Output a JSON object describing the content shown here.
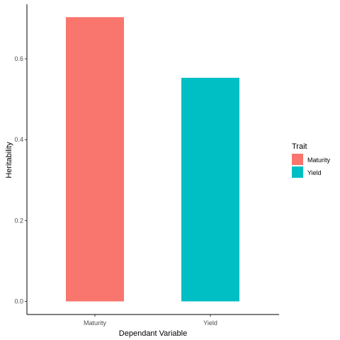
{
  "chart_data": {
    "type": "bar",
    "categories": [
      "Maturity",
      "Yield"
    ],
    "values": [
      0.703,
      0.553
    ],
    "colors": [
      "#F8766D",
      "#00BFC4"
    ],
    "xlabel": "Dependant Variable",
    "ylabel": "Heritability",
    "ylim": [
      0,
      0.74
    ],
    "yticks": [
      "0.0",
      "0.2",
      "0.4",
      "0.6"
    ],
    "grid": false,
    "legend": {
      "title": "Trait",
      "position": "right",
      "entries": [
        {
          "label": "Maturity",
          "color": "#F8766D"
        },
        {
          "label": "Yield",
          "color": "#00BFC4"
        }
      ]
    }
  }
}
